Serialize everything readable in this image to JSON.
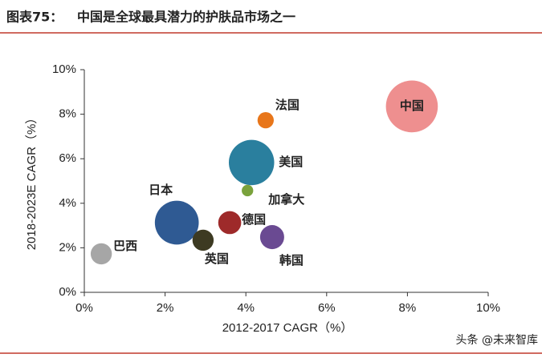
{
  "chart_data": {
    "type": "bubble",
    "figure_label": "图表75：",
    "title": "中国是全球最具潜力的护肤品市场之一",
    "x_label": "2012-2017 CAGR（%）",
    "y_label": "2018-2023E CAGR（%）",
    "xlim": [
      0,
      10
    ],
    "ylim": [
      0,
      10
    ],
    "xticks": [
      {
        "value": 0,
        "label": "0%"
      },
      {
        "value": 2,
        "label": "2%"
      },
      {
        "value": 4,
        "label": "4%"
      },
      {
        "value": 6,
        "label": "6%"
      },
      {
        "value": 8,
        "label": "8%"
      },
      {
        "value": 10,
        "label": "10%"
      }
    ],
    "yticks": [
      {
        "value": 0,
        "label": "0%"
      },
      {
        "value": 2,
        "label": "2%"
      },
      {
        "value": 4,
        "label": "4%"
      },
      {
        "value": 6,
        "label": "6%"
      },
      {
        "value": 8,
        "label": "8%"
      },
      {
        "value": 10,
        "label": "10%"
      }
    ],
    "series": [
      {
        "name": "中国",
        "color": "#ee8f8f",
        "x": 8.11,
        "y": 8.35,
        "size": 102
      },
      {
        "name": "法国",
        "color": "#e8761a",
        "x": 4.49,
        "y": 7.73,
        "size": 10
      },
      {
        "name": "美国",
        "color": "#2a7f9e",
        "x": 4.14,
        "y": 5.83,
        "size": 78
      },
      {
        "name": "加拿大",
        "color": "#7aa23c",
        "x": 4.04,
        "y": 4.57,
        "size": 5
      },
      {
        "name": "日本",
        "color": "#2f5a93",
        "x": 2.29,
        "y": 3.13,
        "size": 73
      },
      {
        "name": "德国",
        "color": "#9e2a2a",
        "x": 3.6,
        "y": 3.13,
        "size": 20
      },
      {
        "name": "英国",
        "color": "#3d3a22",
        "x": 2.94,
        "y": 2.34,
        "size": 17
      },
      {
        "name": "韩国",
        "color": "#6a4a92",
        "x": 4.65,
        "y": 2.48,
        "size": 22
      },
      {
        "name": "巴西",
        "color": "#a6a6a6",
        "x": 0.42,
        "y": 1.73,
        "size": 17
      }
    ],
    "watermark": "头条 @未来智库"
  }
}
